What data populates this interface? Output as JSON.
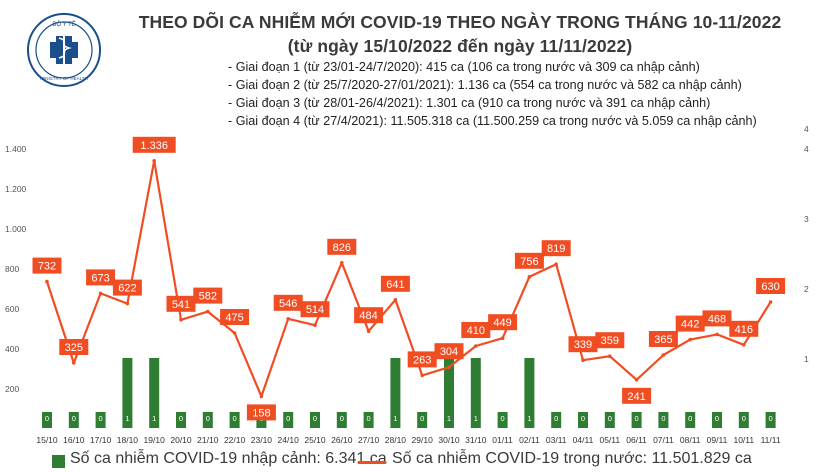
{
  "header": {
    "title_line1": "THEO DÕI CA NHIỄM MỚI COVID-19 THEO NGÀY TRONG THÁNG 10-11/2022",
    "title_line2": "(từ ngày 15/10/2022 đến ngày 11/11/2022)",
    "logo_text": "BỘ Y TẾ · MINISTRY OF HEALTH"
  },
  "stages": [
    "- Giai đoạn 1 (từ 23/01-24/7/2020): 415 ca (106 ca trong nước và 309 ca nhập cảnh)",
    "- Giai đoạn 2 (từ 25/7/2020-27/01/2021): 1.136 ca (554 ca trong nước và 582 ca nhập cảnh)",
    "- Giai đoạn 3 (từ 28/01-26/4/2021): 1.301 ca (910 ca trong nước và 391 ca nhập cảnh)",
    "- Giai đoạn 4 (từ 27/4/2021): 11.505.318 ca (11.500.259 ca trong nước và 5.059 ca nhập cảnh)"
  ],
  "legend": {
    "bar": "Số ca nhiễm COVID-19 nhập cảnh: 6.341 ca",
    "line": "Số ca nhiễm COVID-19 trong nước: 11.501.829 ca"
  },
  "colors": {
    "bar": "#2e7d32",
    "line": "#f04d23",
    "label_bg": "#f04d23",
    "label_text": "#ffffff",
    "axis_text": "#555555"
  },
  "chart_data": {
    "type": "bar+line",
    "categories": [
      "15/10",
      "16/10",
      "17/10",
      "18/10",
      "19/10",
      "20/10",
      "21/10",
      "22/10",
      "23/10",
      "24/10",
      "25/10",
      "26/10",
      "27/10",
      "28/10",
      "29/10",
      "30/10",
      "31/10",
      "01/11",
      "02/11",
      "03/11",
      "04/11",
      "05/11",
      "06/11",
      "07/11",
      "08/11",
      "09/11",
      "10/11",
      "11/11"
    ],
    "series": [
      {
        "name": "Số ca nhiễm COVID-19 nhập cảnh: 6.341 ca",
        "type": "bar",
        "axis": "right",
        "values": [
          0,
          0,
          0,
          1,
          1,
          0,
          0,
          0,
          0,
          0,
          0,
          0,
          0,
          1,
          0,
          1,
          1,
          0,
          1,
          0,
          0,
          0,
          0,
          0,
          0,
          0,
          0,
          0
        ]
      },
      {
        "name": "Số ca nhiễm COVID-19 trong nước: 11.501.829 ca",
        "type": "line",
        "axis": "left",
        "values": [
          732,
          325,
          673,
          622,
          1336,
          541,
          582,
          475,
          158,
          546,
          514,
          826,
          484,
          641,
          263,
          304,
          410,
          449,
          756,
          819,
          339,
          359,
          241,
          365,
          442,
          468,
          416,
          630
        ]
      }
    ],
    "left_axis": {
      "ticks": [
        "200",
        "400",
        "600",
        "800",
        "1.000",
        "1.200",
        "1.400"
      ],
      "ylim": [
        0,
        1400
      ]
    },
    "right_axis": {
      "ticks": [
        "1",
        "2",
        "3",
        "4",
        "4"
      ],
      "ylim": [
        0,
        4
      ]
    },
    "grid": false,
    "legend_position": "bottom"
  }
}
